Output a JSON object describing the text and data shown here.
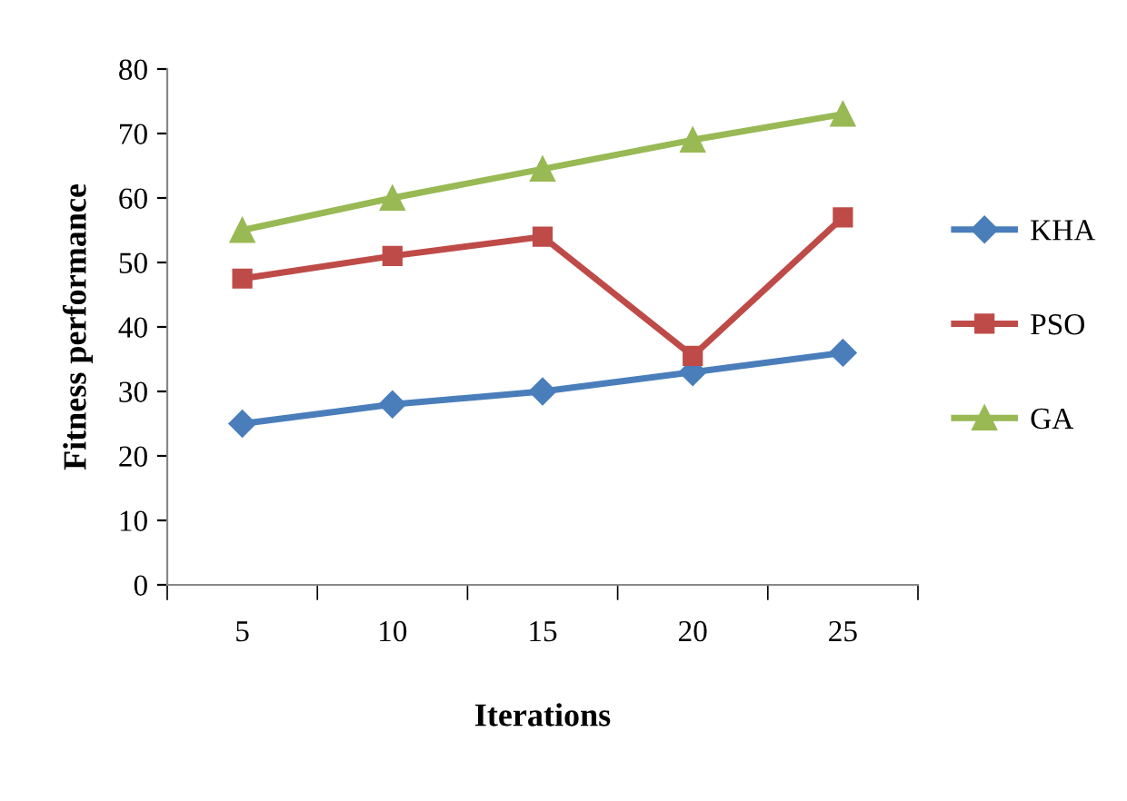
{
  "chart_data": {
    "type": "line",
    "xlabel": "Iterations",
    "ylabel": "Fitness performance",
    "categories": [
      "5",
      "10",
      "15",
      "20",
      "25"
    ],
    "series": [
      {
        "name": "KHA",
        "color": "#4a7ebb",
        "values": [
          25,
          28,
          30,
          33,
          36
        ],
        "marker": "diamond"
      },
      {
        "name": "PSO",
        "color": "#be4b48",
        "values": [
          47.5,
          51,
          54,
          35.5,
          57
        ],
        "marker": "square"
      },
      {
        "name": "GA",
        "color": "#98b954",
        "values": [
          55,
          60,
          64.5,
          69,
          73
        ],
        "marker": "triangle"
      }
    ],
    "ylim": [
      0,
      80
    ],
    "yticks": [
      0,
      10,
      20,
      30,
      40,
      50,
      60,
      70,
      80
    ],
    "grid": false,
    "legend": "right",
    "line_style": "solid"
  }
}
